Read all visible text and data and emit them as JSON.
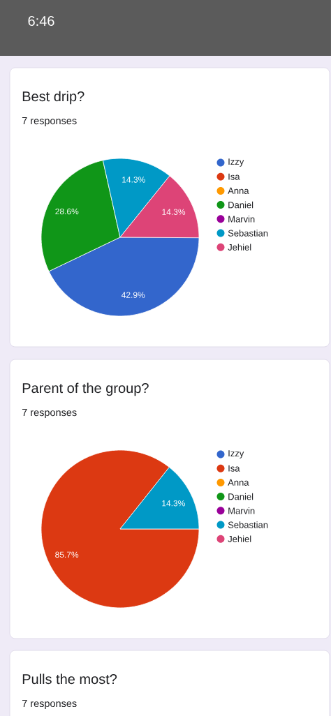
{
  "chart_data": [
    {
      "type": "pie",
      "title": "Best drip?",
      "subtitle": "7 responses",
      "annotations": [
        "6:46"
      ],
      "categories": [
        "Izzy",
        "Isa",
        "Anna",
        "Daniel",
        "Marvin",
        "Sebastian",
        "Jehiel"
      ],
      "values": [
        42.9,
        0,
        0,
        28.6,
        0,
        14.3,
        14.3
      ],
      "value_labels": [
        "42.9%",
        null,
        null,
        "28.6%",
        null,
        "14.3%",
        "14.3%"
      ],
      "colors": [
        "#3366cc",
        "#dc3912",
        "#ff9900",
        "#109618",
        "#990099",
        "#0099c6",
        "#dd4477"
      ],
      "legend": "right"
    },
    {
      "type": "pie",
      "title": "Parent of the group?",
      "subtitle": "7 responses",
      "categories": [
        "Izzy",
        "Isa",
        "Anna",
        "Daniel",
        "Marvin",
        "Sebastian",
        "Jehiel"
      ],
      "values": [
        0,
        85.7,
        0,
        0,
        0,
        14.3,
        0
      ],
      "value_labels": [
        null,
        "85.7%",
        null,
        null,
        null,
        "14.3%",
        null
      ],
      "colors": [
        "#3366cc",
        "#dc3912",
        "#ff9900",
        "#109618",
        "#990099",
        "#0099c6",
        "#dd4477"
      ],
      "legend": "right"
    },
    {
      "type": "other",
      "title": "Pulls the most?",
      "subtitle": "7 responses"
    }
  ]
}
